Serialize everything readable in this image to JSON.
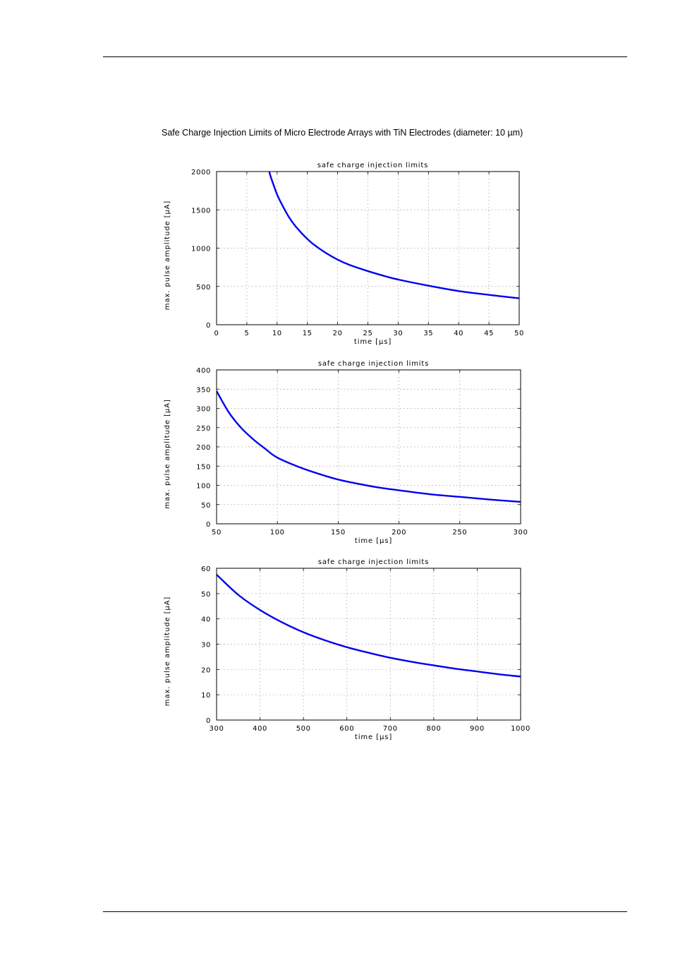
{
  "page": {
    "figure_title": "Safe Charge Injection Limits of Micro Electrode Arrays with TiN Electrodes (diameter: 10 µm)"
  },
  "chart_data": [
    {
      "type": "line",
      "title": "safe charge injection limits",
      "xlabel": "time [µs]",
      "ylabel": "max. pulse amplitude [µA]",
      "xlim": [
        0,
        50
      ],
      "ylim": [
        0,
        2000
      ],
      "xticks": [
        0,
        5,
        10,
        15,
        20,
        25,
        30,
        35,
        40,
        45,
        50
      ],
      "yticks": [
        0,
        500,
        1000,
        1500,
        2000
      ],
      "grid": true,
      "line_color": "#0000ee",
      "series": [
        {
          "x": [
            8.7,
            9,
            10,
            11,
            12,
            13,
            14,
            15,
            16,
            18,
            20,
            22,
            25,
            28,
            30,
            35,
            40,
            45,
            50
          ],
          "y": [
            2000,
            1920,
            1700,
            1540,
            1400,
            1290,
            1200,
            1120,
            1050,
            940,
            850,
            780,
            700,
            630,
            590,
            510,
            440,
            390,
            345
          ]
        }
      ]
    },
    {
      "type": "line",
      "title": "safe charge injection limits",
      "xlabel": "time [µs]",
      "ylabel": "max. pulse amplitude [µA]",
      "xlim": [
        50,
        300
      ],
      "ylim": [
        0,
        400
      ],
      "xticks": [
        50,
        100,
        150,
        200,
        250,
        300
      ],
      "yticks": [
        0,
        50,
        100,
        150,
        200,
        250,
        300,
        350,
        400
      ],
      "grid": true,
      "line_color": "#0000ee",
      "series": [
        {
          "x": [
            50,
            60,
            70,
            80,
            90,
            100,
            120,
            140,
            150,
            160,
            180,
            200,
            225,
            250,
            275,
            300
          ],
          "y": [
            345,
            290,
            250,
            220,
            195,
            172,
            145,
            124,
            115,
            108,
            96,
            87,
            77,
            70,
            63,
            57
          ]
        }
      ]
    },
    {
      "type": "line",
      "title": "safe charge injection limits",
      "xlabel": "time [µs]",
      "ylabel": "max. pulse amplitude [µA]",
      "xlim": [
        300,
        1000
      ],
      "ylim": [
        0,
        60
      ],
      "xticks": [
        300,
        400,
        500,
        600,
        700,
        800,
        900,
        1000
      ],
      "yticks": [
        0,
        10,
        20,
        30,
        40,
        50,
        60
      ],
      "grid": true,
      "line_color": "#0000ee",
      "series": [
        {
          "x": [
            300,
            350,
            400,
            450,
            500,
            550,
            600,
            650,
            700,
            750,
            800,
            850,
            900,
            950,
            1000
          ],
          "y": [
            57.5,
            49.5,
            43.5,
            38.7,
            34.7,
            31.5,
            28.8,
            26.6,
            24.6,
            23,
            21.6,
            20.3,
            19.2,
            18.1,
            17.2
          ]
        }
      ]
    }
  ]
}
